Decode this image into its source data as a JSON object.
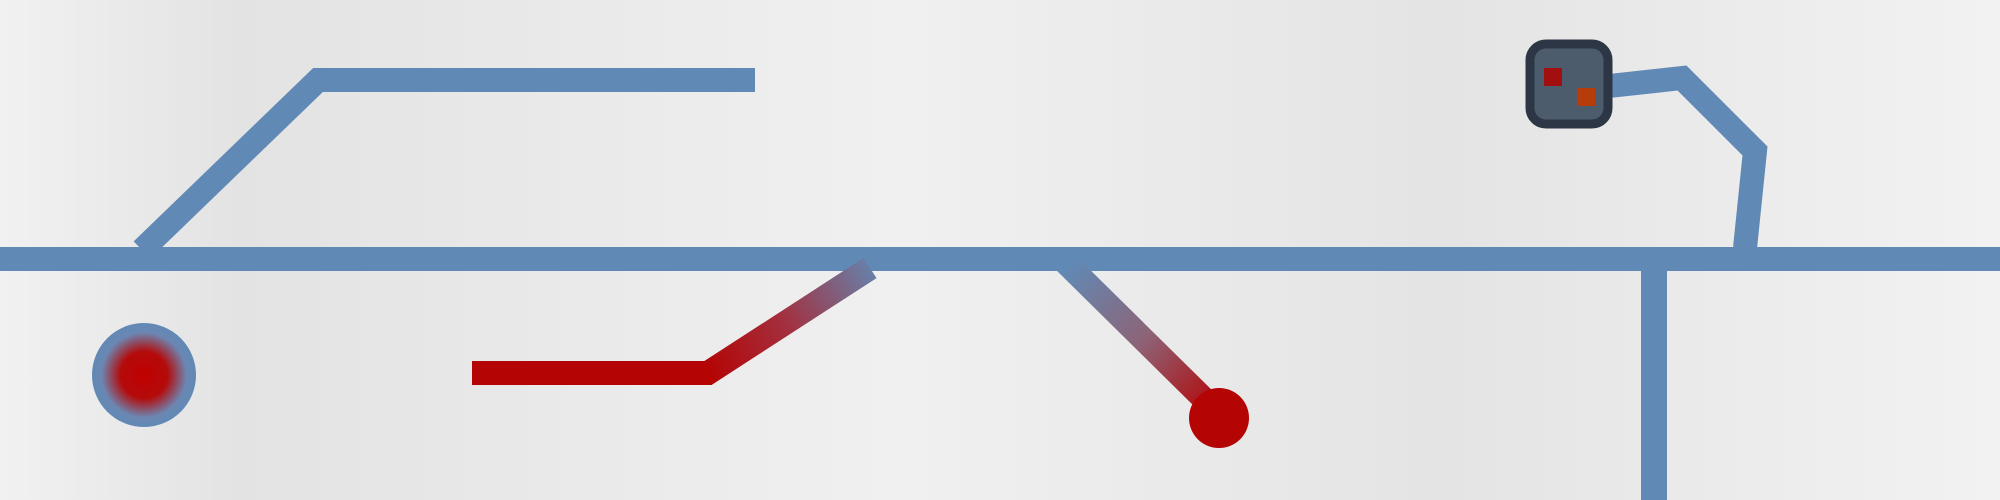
{
  "colors": {
    "track": "#6189b5",
    "track_faded": "#7f97ac",
    "alert": "#b40404",
    "device_body": "#4c5c6c",
    "device_border": "#2c3644",
    "device_led_1": "#a10f0f",
    "device_led_2": "#b73c0c",
    "background_light": "#f1f1f1",
    "background_dark": "#e1e1e1"
  },
  "elements": {
    "main_track": "main-horizontal-track",
    "upper_left_branch": "upper-left-branch",
    "lower_left_alert_branch": "alert-branch-left",
    "lower_middle_alert_branch": "alert-branch-middle",
    "right_drop_track": "right-vertical-track",
    "device": "status-device",
    "left_indicator": "left-indicator-node"
  }
}
